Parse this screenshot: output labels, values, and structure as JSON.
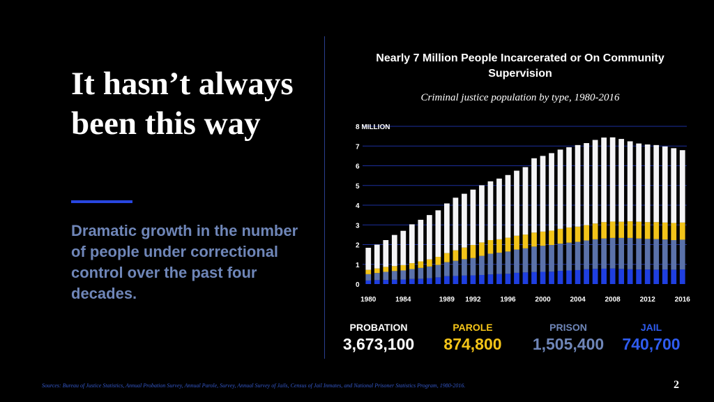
{
  "slide": {
    "headline": "It hasn’t always been this way",
    "subhead": "Dramatic growth in the number of people under correctional control over the past four decades.",
    "sources": "Sources: Bureau of Justice Statistics, Annual Probation Survey, Annual Parole, Survey, Annual Survey of Jails, Census of Jail Inmates, and National Prisoner Statistics Program, 1980-2016.",
    "page_number": "2"
  },
  "legend": [
    {
      "label": "PROBATION",
      "value": "3,673,100",
      "color": "#ffffff"
    },
    {
      "label": "PAROLE",
      "value": "874,800",
      "color": "#f5c518"
    },
    {
      "label": "PRISON",
      "value": "1,505,400",
      "color": "#6f86b8"
    },
    {
      "label": "JAIL",
      "value": "740,700",
      "color": "#2f5cf0"
    }
  ],
  "colors": {
    "background": "#000000",
    "probation": "#f4f4f6",
    "parole": "#f2c41a",
    "prison": "#5b72aa",
    "jail": "#1f3fe0",
    "gridline": "#1c2f9e",
    "accent": "#2846e0"
  },
  "chart_data": {
    "type": "bar",
    "stacked": true,
    "title": "Nearly 7 Million People Incarcerated or On Community Supervision",
    "subtitle": "Criminal justice population by type, 1980-2016",
    "x": [
      1980,
      1981,
      1982,
      1983,
      1984,
      1985,
      1986,
      1987,
      1988,
      1989,
      1990,
      1991,
      1992,
      1993,
      1994,
      1995,
      1996,
      1997,
      1998,
      1999,
      2000,
      2001,
      2002,
      2003,
      2004,
      2005,
      2006,
      2007,
      2008,
      2009,
      2010,
      2011,
      2012,
      2013,
      2014,
      2015,
      2016
    ],
    "x_tick_labels": [
      "1980",
      "1984",
      "1989",
      "1992",
      "1996",
      "2000",
      "2004",
      "2008",
      "2012",
      "2016"
    ],
    "y_tick_labels": [
      "0",
      "1",
      "2",
      "3",
      "4",
      "5",
      "6",
      "7",
      "8 MILLION"
    ],
    "ylim": [
      0,
      8
    ],
    "units": "millions",
    "grid": true,
    "series": [
      {
        "name": "JAIL",
        "values": [
          0.18,
          0.2,
          0.21,
          0.22,
          0.23,
          0.26,
          0.27,
          0.3,
          0.34,
          0.4,
          0.41,
          0.43,
          0.44,
          0.46,
          0.49,
          0.51,
          0.52,
          0.57,
          0.59,
          0.61,
          0.62,
          0.63,
          0.67,
          0.69,
          0.71,
          0.75,
          0.77,
          0.78,
          0.79,
          0.77,
          0.75,
          0.74,
          0.74,
          0.73,
          0.74,
          0.73,
          0.74
        ]
      },
      {
        "name": "PRISON",
        "values": [
          0.32,
          0.36,
          0.41,
          0.44,
          0.46,
          0.5,
          0.55,
          0.59,
          0.63,
          0.71,
          0.77,
          0.83,
          0.88,
          0.97,
          1.05,
          1.08,
          1.13,
          1.18,
          1.22,
          1.29,
          1.32,
          1.35,
          1.38,
          1.41,
          1.43,
          1.46,
          1.5,
          1.53,
          1.55,
          1.57,
          1.59,
          1.57,
          1.55,
          1.55,
          1.52,
          1.5,
          1.51
        ]
      },
      {
        "name": "PAROLE",
        "values": [
          0.22,
          0.23,
          0.25,
          0.25,
          0.27,
          0.3,
          0.33,
          0.36,
          0.41,
          0.46,
          0.53,
          0.59,
          0.66,
          0.68,
          0.69,
          0.68,
          0.7,
          0.7,
          0.7,
          0.71,
          0.72,
          0.73,
          0.75,
          0.77,
          0.77,
          0.78,
          0.8,
          0.83,
          0.83,
          0.82,
          0.84,
          0.85,
          0.85,
          0.86,
          0.86,
          0.87,
          0.87
        ]
      },
      {
        "name": "PROBATION",
        "values": [
          1.12,
          1.21,
          1.36,
          1.58,
          1.74,
          1.97,
          2.11,
          2.25,
          2.36,
          2.52,
          2.67,
          2.73,
          2.81,
          2.9,
          2.98,
          3.08,
          3.18,
          3.3,
          3.42,
          3.77,
          3.84,
          3.93,
          4.02,
          4.07,
          4.14,
          4.16,
          4.24,
          4.29,
          4.27,
          4.2,
          4.06,
          3.97,
          3.94,
          3.91,
          3.86,
          3.79,
          3.67
        ]
      }
    ]
  }
}
